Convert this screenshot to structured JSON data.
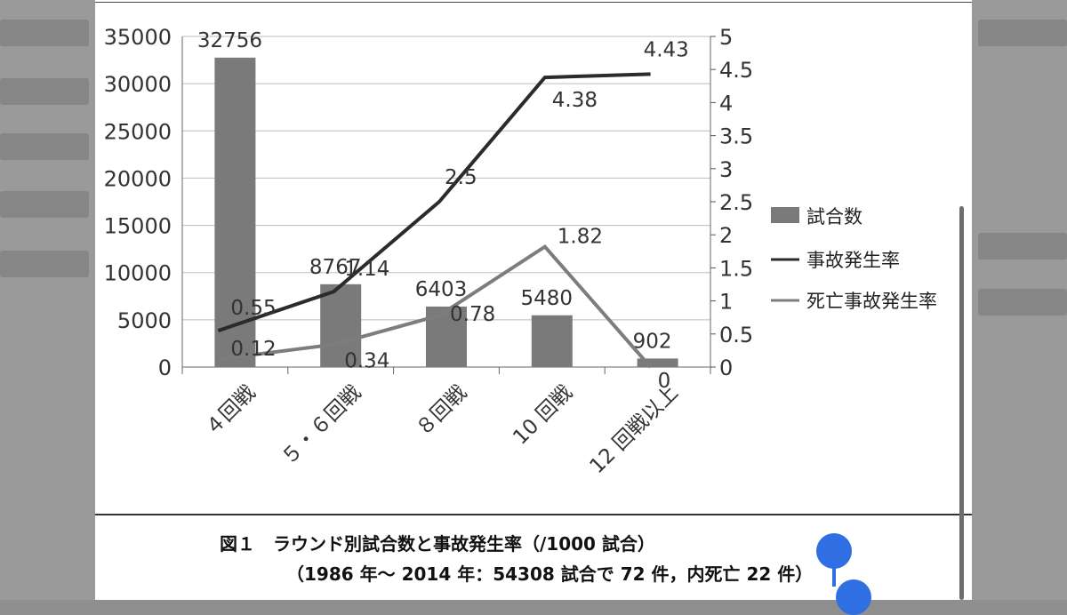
{
  "chart_data": {
    "type": "bar+line",
    "categories": [
      "４回戦",
      "５・６回戦",
      "８回戦",
      "10 回戦",
      "12 回戦以上"
    ],
    "bar_series": {
      "name": "試合数",
      "values": [
        32756,
        8767,
        6403,
        5480,
        902
      ],
      "color": "#7a7a7a"
    },
    "line_series": [
      {
        "name": "事故発生率",
        "values": [
          0.55,
          1.14,
          2.5,
          4.38,
          4.43
        ],
        "labels": [
          "0.55",
          "1.14",
          "2.5",
          "4.38",
          "4.43"
        ],
        "color": "#2b2b2b"
      },
      {
        "name": "死亡事故発生率",
        "values": [
          0.12,
          0.34,
          0.78,
          1.82,
          0
        ],
        "labels": [
          "0.12",
          "0.34",
          "0.78",
          "1.82",
          "0"
        ],
        "color": "#7d7d7d"
      }
    ],
    "y_left": {
      "min": 0,
      "max": 35000,
      "step": 5000,
      "ticks": [
        "0",
        "5000",
        "10000",
        "15000",
        "20000",
        "25000",
        "30000",
        "35000"
      ]
    },
    "y_right": {
      "min": 0,
      "max": 5,
      "step": 0.5,
      "ticks": [
        "0",
        "0.5",
        "1",
        "1.5",
        "2",
        "2.5",
        "3",
        "3.5",
        "4",
        "4.5",
        "5"
      ]
    },
    "grid": true,
    "legend": "right"
  },
  "caption": {
    "line1": "図１　ラウンド別試合数と事故発生率（/1000 試合）",
    "line2": "（1986 年〜 2014 年：54308 試合で 72 件，内死亡 22 件）"
  }
}
